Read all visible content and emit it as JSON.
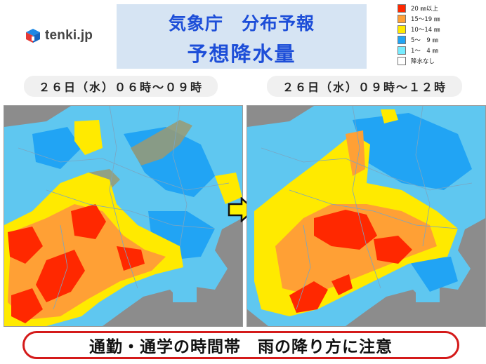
{
  "logo": {
    "text": "tenki.jp",
    "icon": "tenki-cube-logo"
  },
  "title": {
    "line1": "気象庁　分布予報",
    "line2": "予想降水量"
  },
  "legend": [
    {
      "label": "20 ㎜以上",
      "color": "#ff2800"
    },
    {
      "label": "15～19 ㎜",
      "color": "#ffa035"
    },
    {
      "label": "10～14 ㎜",
      "color": "#ffea00"
    },
    {
      "label": "5～　9 ㎜",
      "color": "#21a4f4"
    },
    {
      "label": "1～　4 ㎜",
      "color": "#77ecff"
    },
    {
      "label": "降水なし",
      "color": "#ffffff"
    }
  ],
  "maps": [
    {
      "label": "２６日（水）０６時～０９時"
    },
    {
      "label": "２６日（水）０９時～１２時"
    }
  ],
  "colors": {
    "sea": "#8c8c8c",
    "land_background": "#5fc7f0",
    "boundary": "#7aa6c2"
  },
  "banner": {
    "text": "通勤・通学の時間帯　雨の降り方に注意"
  }
}
